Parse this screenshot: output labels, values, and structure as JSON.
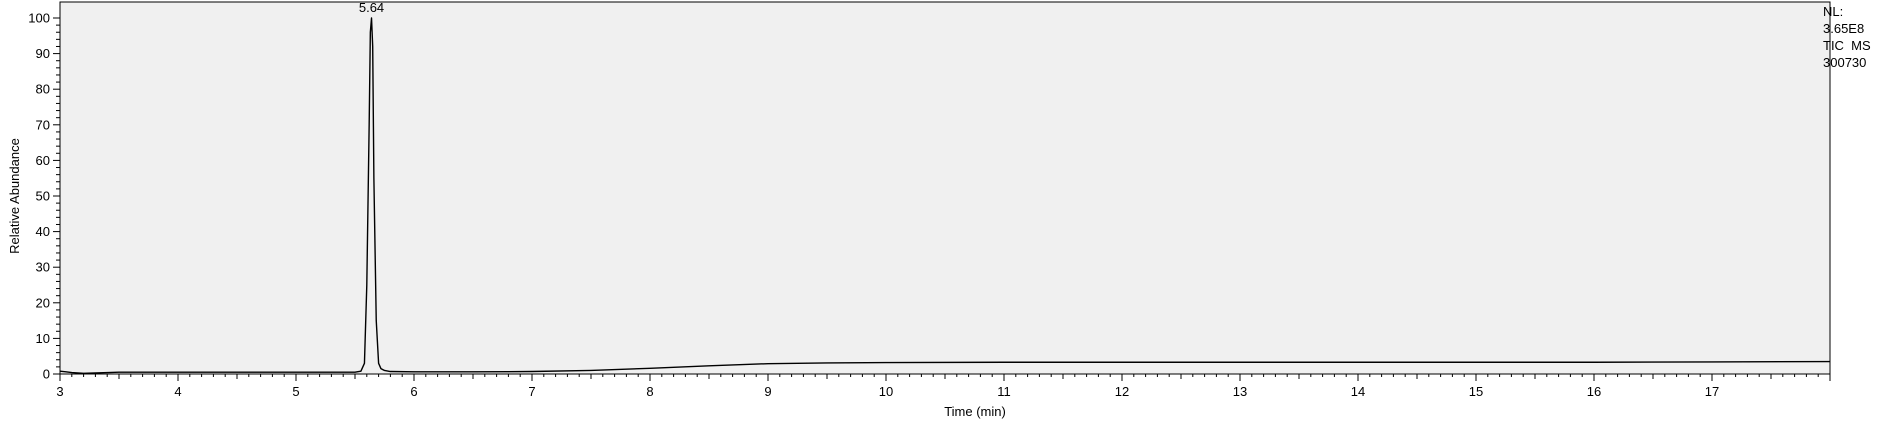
{
  "chart_data": {
    "type": "line",
    "title": "",
    "xlabel": "Time (min)",
    "ylabel": "Relative Abundance",
    "xlim": [
      3.0,
      18.0
    ],
    "ylim": [
      0,
      100
    ],
    "x_ticks": [
      3,
      4,
      5,
      6,
      7,
      8,
      9,
      10,
      11,
      12,
      13,
      14,
      15,
      16,
      17
    ],
    "y_ticks": [
      0,
      10,
      20,
      30,
      40,
      50,
      60,
      70,
      80,
      90,
      100
    ],
    "x_tick_labels": [
      "3",
      "4",
      "5",
      "6",
      "7",
      "8",
      "9",
      "10",
      "11",
      "12",
      "13",
      "14",
      "15",
      "16",
      "17"
    ],
    "y_tick_labels": [
      "0",
      "10",
      "20",
      "30",
      "40",
      "50",
      "60",
      "70",
      "80",
      "90",
      "100"
    ],
    "grid": false,
    "background": "#f0f0f0",
    "line_color": "#000000",
    "peak_annotations": [
      {
        "label": "5.64",
        "x": 5.64,
        "y": 100
      }
    ],
    "series": [
      {
        "x": [
          3.0,
          3.05,
          3.1,
          3.2,
          3.3,
          3.4,
          3.5,
          4.0,
          4.5,
          5.0,
          5.5,
          5.55,
          5.58,
          5.6,
          5.62,
          5.63,
          5.64,
          5.65,
          5.66,
          5.68,
          5.7,
          5.72,
          5.75,
          5.8,
          6.0,
          6.5,
          7.0,
          7.5,
          8.0,
          8.5,
          9.0,
          9.5,
          10.0,
          11.0,
          12.0,
          13.0,
          14.0,
          15.0,
          16.0,
          17.0,
          18.0
        ],
        "y": [
          0.8,
          0.6,
          0.4,
          0.2,
          0.3,
          0.4,
          0.5,
          0.5,
          0.5,
          0.5,
          0.5,
          0.8,
          3,
          25,
          70,
          96,
          100,
          92,
          55,
          15,
          3,
          1.5,
          1.0,
          0.7,
          0.6,
          0.6,
          0.7,
          1.0,
          1.6,
          2.3,
          2.9,
          3.1,
          3.2,
          3.3,
          3.3,
          3.3,
          3.3,
          3.3,
          3.3,
          3.4,
          3.5
        ]
      }
    ]
  },
  "side_info": {
    "nl_label": "NL:",
    "nl_value": "3.65E8",
    "trace": "TIC  MS",
    "sample": "300730"
  }
}
